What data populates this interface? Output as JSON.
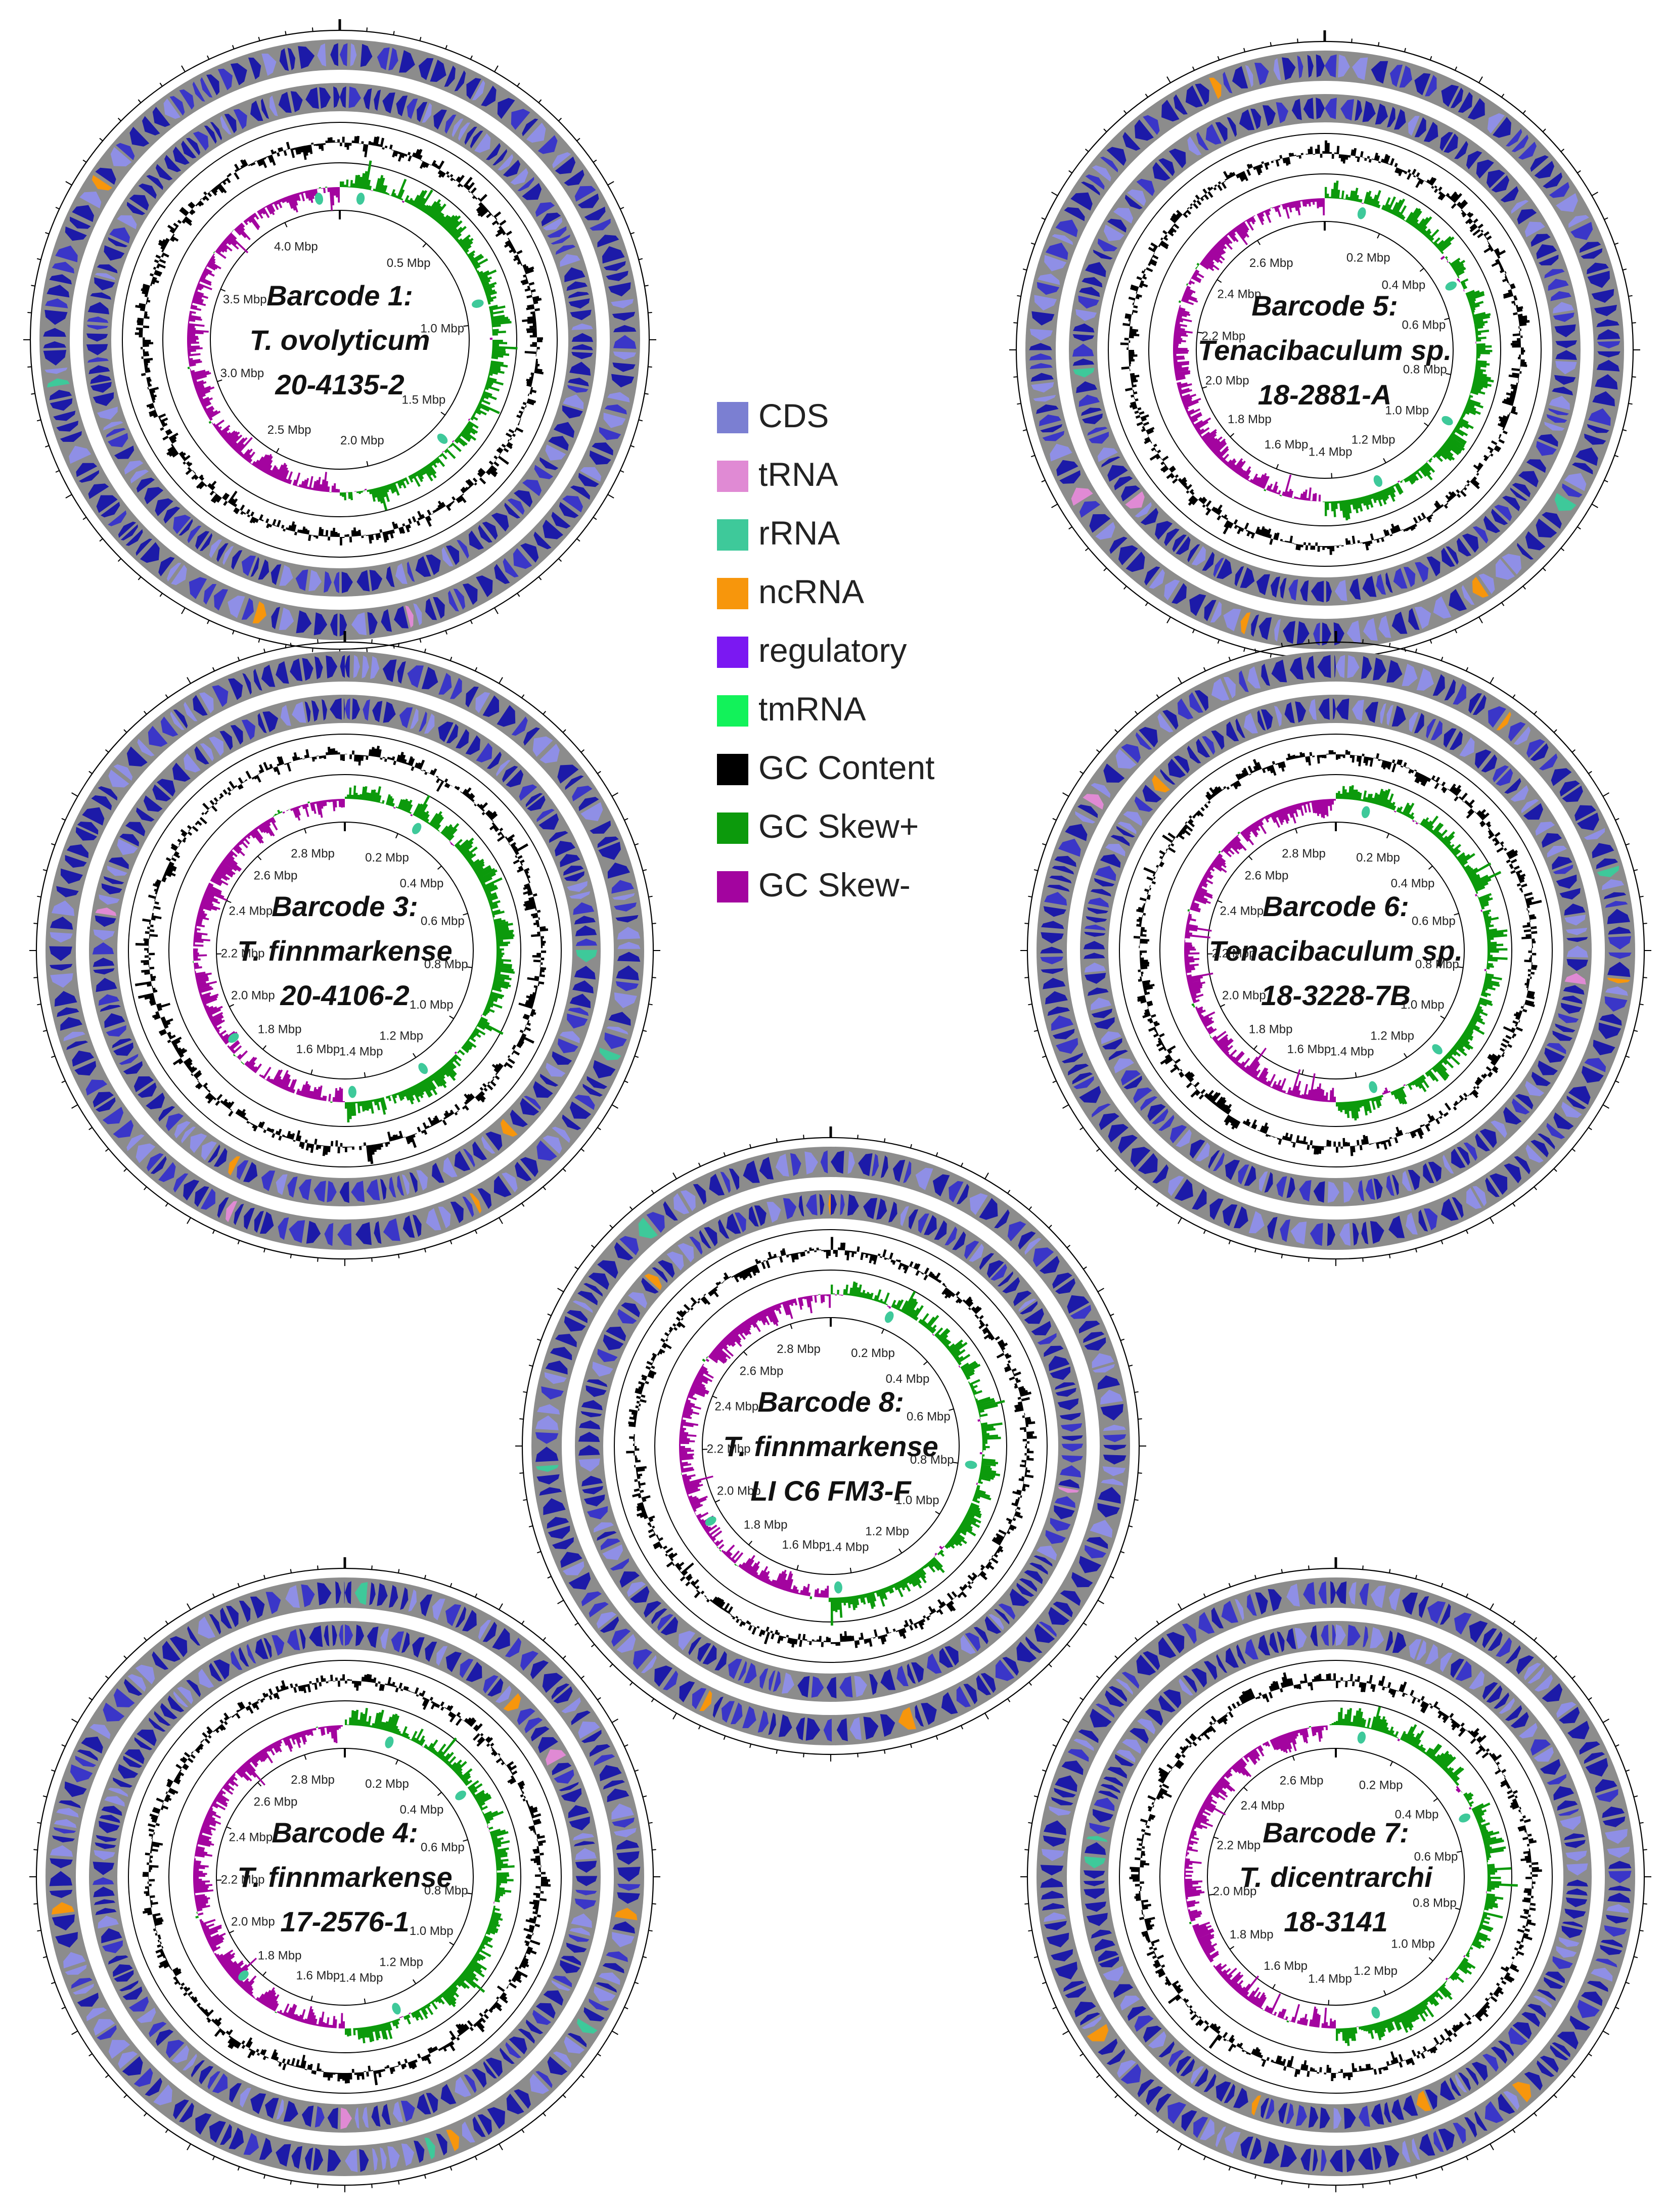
{
  "legend": {
    "items": [
      {
        "label": "CDS",
        "color": "#7b7fd2"
      },
      {
        "label": "tRNA",
        "color": "#e08ad4"
      },
      {
        "label": "rRNA",
        "color": "#3ec99a"
      },
      {
        "label": "ncRNA",
        "color": "#f7960c"
      },
      {
        "label": "regulatory",
        "color": "#7b18f2"
      },
      {
        "label": "tmRNA",
        "color": "#12f25a"
      },
      {
        "label": "GC Content",
        "color": "#000000"
      },
      {
        "label": "GC Skew+",
        "color": "#0c9a0c"
      },
      {
        "label": "GC Skew-",
        "color": "#a3049f"
      }
    ]
  },
  "colors": {
    "cds_dark": "#1c1aa8",
    "cds_mid": "#3a36c8",
    "cds_light": "#8f8fe6",
    "backbone": "#8c8c8c",
    "ring_line": "#000000",
    "gc_content": "#000000",
    "gc_skew_pos": "#0c9a0c",
    "gc_skew_neg": "#a3049f",
    "rrna": "#3ec99a",
    "ncrna": "#f7960c",
    "trna": "#e08ad4"
  },
  "chart_data": [
    {
      "type": "circular_genome_map",
      "title_lines": [
        "Barcode 1:",
        "T. ovolyticum",
        "20-4135-2"
      ],
      "genome_size_mbp": 4.3,
      "tick_labels": [
        "0.5 Mbp",
        "1.0 Mbp",
        "1.5 Mbp",
        "2.0 Mbp",
        "2.5 Mbp",
        "3.0 Mbp",
        "3.5 Mbp",
        "4.0 Mbp"
      ],
      "tick_values_mbp": [
        0.5,
        1.0,
        1.5,
        2.0,
        2.5,
        3.0,
        3.5,
        4.0
      ],
      "rrna_positions_mbp": [
        0.1,
        0.9,
        1.6,
        4.2
      ]
    },
    {
      "type": "circular_genome_map",
      "title_lines": [
        "Barcode 5:",
        "Tenacibaculum sp.",
        "18-2881-A"
      ],
      "genome_size_mbp": 2.85,
      "tick_labels": [
        "0.2 Mbp",
        "0.4 Mbp",
        "0.6 Mbp",
        "0.8 Mbp",
        "1.0 Mbp",
        "1.2 Mbp",
        "1.4 Mbp",
        "1.6 Mbp",
        "1.8 Mbp",
        "2.0 Mbp",
        "2.2 Mbp",
        "2.4 Mbp",
        "2.6 Mbp"
      ],
      "tick_values_mbp": [
        0.2,
        0.4,
        0.6,
        0.8,
        1.0,
        1.2,
        1.4,
        1.6,
        1.8,
        2.0,
        2.2,
        2.4,
        2.6
      ],
      "rrna_positions_mbp": [
        0.12,
        0.5,
        0.95,
        1.25
      ]
    },
    {
      "type": "circular_genome_map",
      "title_lines": [
        "Barcode 3:",
        "T. finnmarkense",
        "20-4106-2"
      ],
      "genome_size_mbp": 2.95,
      "tick_labels": [
        "0.2 Mbp",
        "0.4 Mbp",
        "0.6 Mbp",
        "0.8 Mbp",
        "1.0 Mbp",
        "1.2 Mbp",
        "1.4 Mbp",
        "1.6 Mbp",
        "1.8 Mbp",
        "2.0 Mbp",
        "2.2 Mbp",
        "2.4 Mbp",
        "2.6 Mbp",
        "2.8 Mbp"
      ],
      "tick_values_mbp": [
        0.2,
        0.4,
        0.6,
        0.8,
        1.0,
        1.2,
        1.4,
        1.6,
        1.8,
        2.0,
        2.2,
        2.4,
        2.6,
        2.8
      ],
      "rrna_positions_mbp": [
        0.25,
        1.2,
        1.45,
        1.9
      ]
    },
    {
      "type": "circular_genome_map",
      "title_lines": [
        "Barcode 6:",
        "Tenacibaculum sp.",
        "18-3228-7B"
      ],
      "genome_size_mbp": 2.95,
      "tick_labels": [
        "0.2 Mbp",
        "0.4 Mbp",
        "0.6 Mbp",
        "0.8 Mbp",
        "1.0 Mbp",
        "1.2 Mbp",
        "1.4 Mbp",
        "1.6 Mbp",
        "1.8 Mbp",
        "2.0 Mbp",
        "2.2 Mbp",
        "2.4 Mbp",
        "2.6 Mbp",
        "2.8 Mbp"
      ],
      "tick_values_mbp": [
        0.2,
        0.4,
        0.6,
        0.8,
        1.0,
        1.2,
        1.4,
        1.6,
        1.8,
        2.0,
        2.2,
        2.4,
        2.6,
        2.8
      ],
      "rrna_positions_mbp": [
        0.1,
        1.1,
        1.35
      ]
    },
    {
      "type": "circular_genome_map",
      "title_lines": [
        "Barcode 8:",
        "T. finnmarkense",
        "LI C6 FM3-F"
      ],
      "genome_size_mbp": 2.95,
      "tick_labels": [
        "0.2 Mbp",
        "0.4 Mbp",
        "0.6 Mbp",
        "0.8 Mbp",
        "1.0 Mbp",
        "1.2 Mbp",
        "1.4 Mbp",
        "1.6 Mbp",
        "1.8 Mbp",
        "2.0 Mbp",
        "2.2 Mbp",
        "2.4 Mbp",
        "2.6 Mbp",
        "2.8 Mbp"
      ],
      "tick_values_mbp": [
        0.2,
        0.4,
        0.6,
        0.8,
        1.0,
        1.2,
        1.4,
        1.6,
        1.8,
        2.0,
        2.2,
        2.4,
        2.6,
        2.8
      ],
      "rrna_positions_mbp": [
        0.2,
        0.8,
        1.45,
        1.95
      ]
    },
    {
      "type": "circular_genome_map",
      "title_lines": [
        "Barcode 4:",
        "T. finnmarkense",
        "17-2576-1"
      ],
      "genome_size_mbp": 2.95,
      "tick_labels": [
        "0.2 Mbp",
        "0.4 Mbp",
        "0.6 Mbp",
        "0.8 Mbp",
        "1.0 Mbp",
        "1.2 Mbp",
        "1.4 Mbp",
        "1.6 Mbp",
        "1.8 Mbp",
        "2.0 Mbp",
        "2.2 Mbp",
        "2.4 Mbp",
        "2.6 Mbp",
        "2.8 Mbp"
      ],
      "tick_values_mbp": [
        0.2,
        0.4,
        0.6,
        0.8,
        1.0,
        1.2,
        1.4,
        1.6,
        1.8,
        2.0,
        2.2,
        2.4,
        2.6,
        2.8
      ],
      "rrna_positions_mbp": [
        0.15,
        0.45,
        1.3,
        1.85
      ]
    },
    {
      "type": "circular_genome_map",
      "title_lines": [
        "Barcode 7:",
        "T. dicentrarchi",
        "18-3141"
      ],
      "genome_size_mbp": 2.75,
      "tick_labels": [
        "0.2 Mbp",
        "0.4 Mbp",
        "0.6 Mbp",
        "0.8 Mbp",
        "1.0 Mbp",
        "1.2 Mbp",
        "1.4 Mbp",
        "1.6 Mbp",
        "1.8 Mbp",
        "2.0 Mbp",
        "2.2 Mbp",
        "2.4 Mbp",
        "2.6 Mbp"
      ],
      "tick_values_mbp": [
        0.2,
        0.4,
        0.6,
        0.8,
        1.0,
        1.2,
        1.4,
        1.6,
        1.8,
        2.0,
        2.2,
        2.4,
        2.6
      ],
      "rrna_positions_mbp": [
        0.08,
        0.5,
        1.25
      ]
    }
  ]
}
